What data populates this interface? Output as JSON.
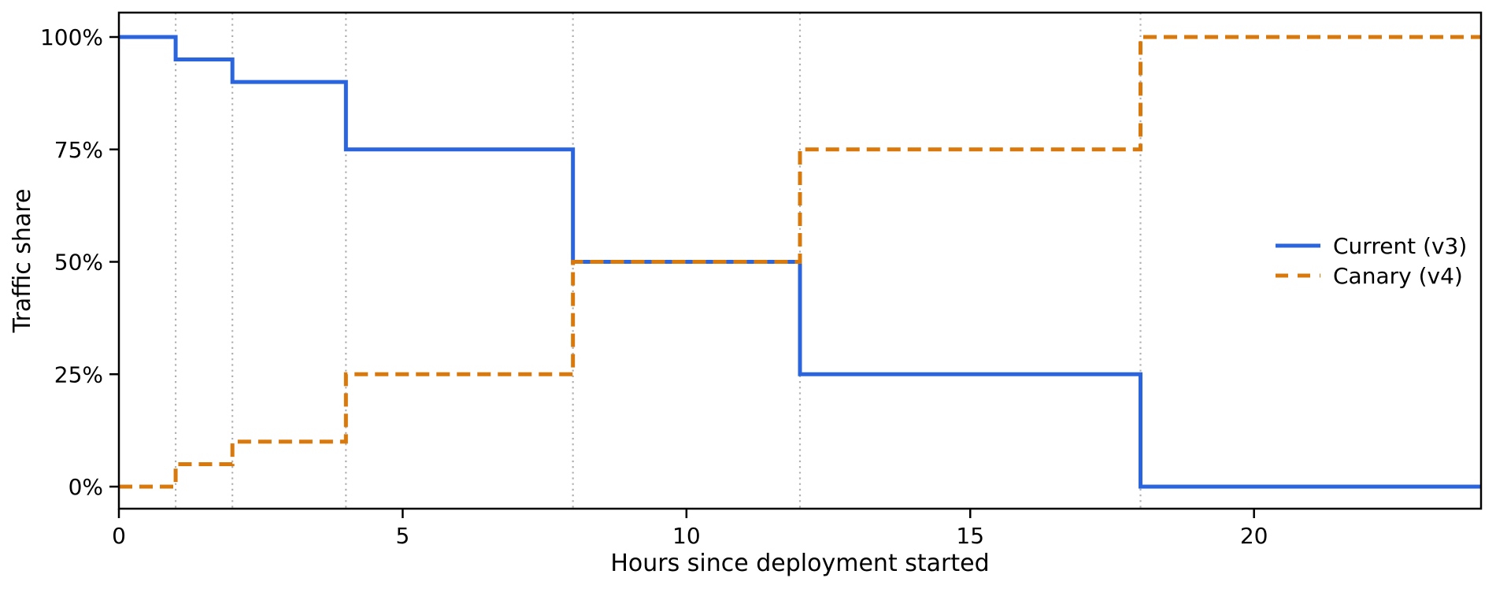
{
  "page": {
    "background": "#ffffff"
  },
  "chart_data": {
    "type": "line",
    "step_mode": "post",
    "title": "",
    "xlabel": "Hours since deployment started",
    "ylabel": "Traffic share",
    "xlim": [
      0,
      24
    ],
    "ylim": [
      0,
      100
    ],
    "x_breakpoints": [
      0,
      1,
      2,
      4,
      8,
      12,
      18,
      24
    ],
    "series": [
      {
        "id": "current-v3",
        "name": "Current (v3)",
        "color": "#2b65de",
        "style": "solid",
        "values": [
          100,
          95,
          90,
          75,
          50,
          25,
          0
        ]
      },
      {
        "id": "canary-v4",
        "name": "Canary (v4)",
        "color": "#d9790c",
        "style": "dashed",
        "values": [
          0,
          5,
          10,
          25,
          50,
          75,
          100
        ]
      }
    ],
    "x_ticks": [
      0,
      5,
      10,
      15,
      20
    ],
    "y_ticks": [
      {
        "label": "0%",
        "value": 0
      },
      {
        "label": "25%",
        "value": 25
      },
      {
        "label": "50%",
        "value": 50
      },
      {
        "label": "75%",
        "value": 75
      },
      {
        "label": "100%",
        "value": 100
      }
    ],
    "gridlines_x": [
      1,
      2,
      4,
      8,
      12,
      18
    ],
    "grid_color": "#b0b0b0",
    "grid_style": "dotted",
    "axis_color": "#000000",
    "legend": {
      "position": "right-center",
      "frame": false,
      "entries": [
        "Current (v3)",
        "Canary (v4)"
      ]
    }
  }
}
